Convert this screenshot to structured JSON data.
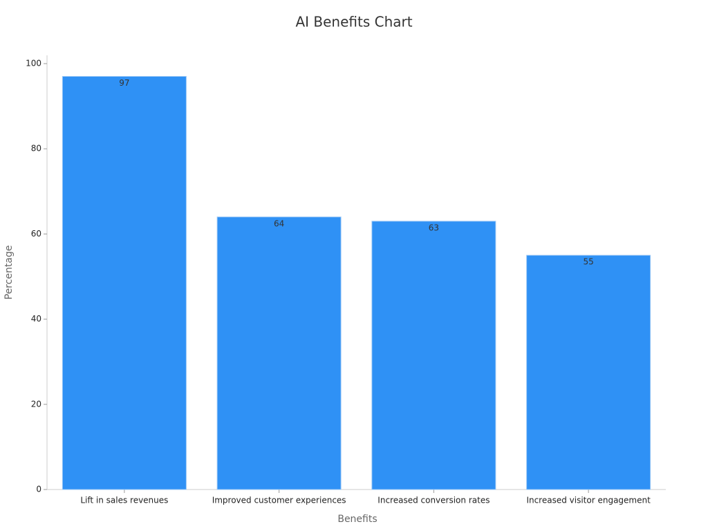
{
  "chart_data": {
    "type": "bar",
    "title": "AI Benefits Chart",
    "x_label": "Benefits",
    "y_label": "Percentage",
    "categories": [
      "Lift in sales revenues",
      "Improved customer experiences",
      "Increased conversion rates",
      "Increased visitor engagement"
    ],
    "values": [
      97,
      64,
      63,
      55
    ],
    "color": "#2f91f5",
    "ylim": [
      0,
      100
    ],
    "yticks": [
      0,
      20,
      40,
      60,
      80,
      100
    ]
  }
}
